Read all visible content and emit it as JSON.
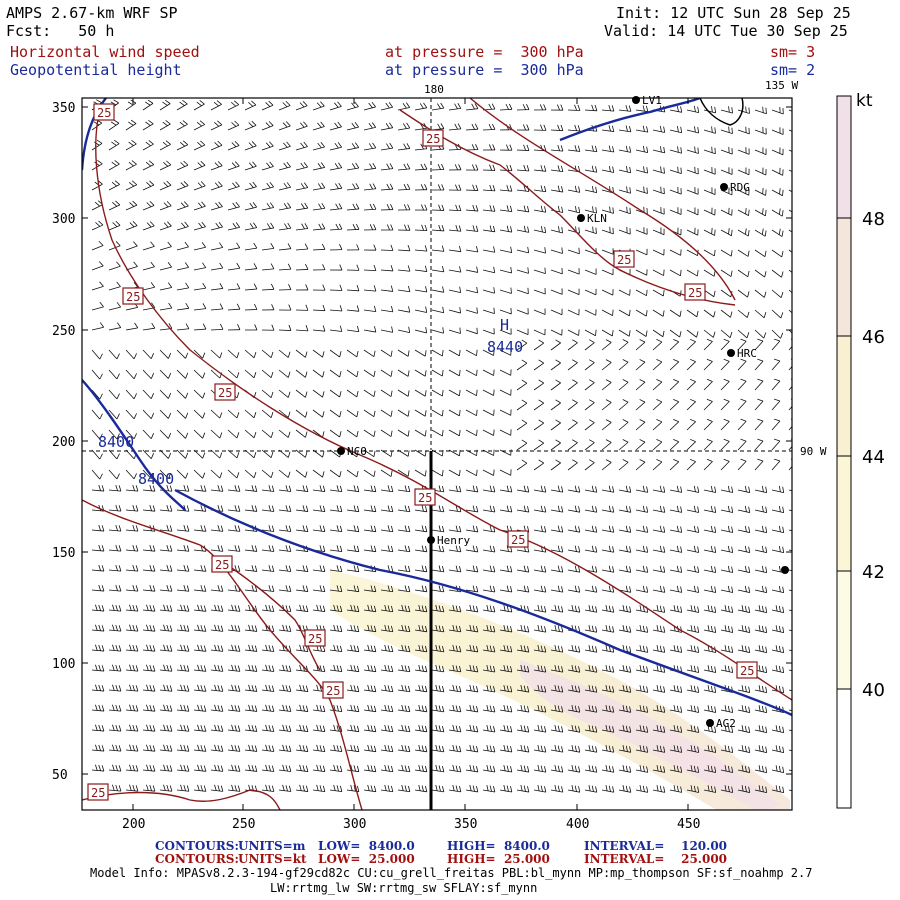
{
  "header": {
    "title": "AMPS 2.67-km WRF SP",
    "forecast": "Fcst:   50 h",
    "init": "Init: 12 UTC Sun 28 Sep 25",
    "valid": "Valid: 14 UTC Tue 30 Sep 25",
    "field1": {
      "name": "Horizontal wind speed",
      "level": "at pressure =  300 hPa",
      "sm": "sm= 3"
    },
    "field2": {
      "name": "Geopotential height",
      "level": "at pressure =  300 hPa",
      "sm": "sm= 2"
    }
  },
  "map": {
    "lon_labels": {
      "top_180": "180",
      "top_135w": "135 W",
      "right_90w": "90 W"
    },
    "x_ticks": [
      "200",
      "250",
      "300",
      "350",
      "400",
      "450"
    ],
    "y_ticks": [
      "350",
      "300",
      "250",
      "200",
      "150",
      "100",
      "50"
    ],
    "stations": [
      "LV1",
      "RDG",
      "KLN",
      "HRC",
      "NCO",
      "Henry",
      "AG2"
    ],
    "high_label": "H",
    "high_value": "8440",
    "height_labels": [
      "8400",
      "8400"
    ],
    "speed_labels": [
      "25",
      "25",
      "25",
      "25",
      "25",
      "25",
      "25",
      "25",
      "25",
      "25",
      "25",
      "25",
      "25"
    ]
  },
  "colorbar": {
    "unit": "kt",
    "ticks": [
      "48",
      "46",
      "44",
      "42",
      "40"
    ],
    "colors": [
      "#f2e0e8",
      "#f5e6dc",
      "#f8f0d0",
      "#fbf6d6",
      "#fdfbe6",
      "#ffffff"
    ]
  },
  "footer": {
    "line1": {
      "label": "CONTOURS:",
      "units": "UNITS=m",
      "low": "LOW=  8400.0",
      "high": "HIGH=  8400.0",
      "interval": "INTERVAL=    120.00"
    },
    "line2": {
      "label": "CONTOURS:",
      "units": "UNITS=kt",
      "low": "LOW=  25.000",
      "high": "HIGH=  25.000",
      "interval": "INTERVAL=    25.000"
    },
    "model_info": "Model Info: MPASv8.2.3-194-gf29cd82c CU:cu_grell_freitas PBL:bl_mynn MP:mp_thompson SF:sf_noahmp 2.7",
    "model_info2": "LW:rrtmg_lw SW:rrtmg_sw SFLAY:sf_mynn"
  },
  "colors": {
    "wind_contour": "#8b1a1a",
    "height_contour": "#1a2a9a",
    "barb": "#000000"
  }
}
